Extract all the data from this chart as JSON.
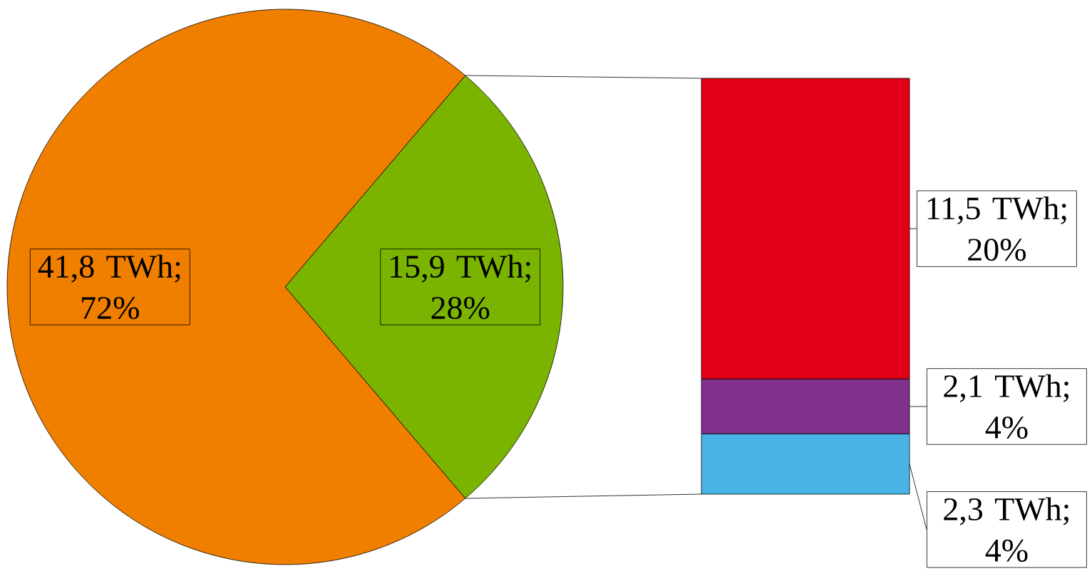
{
  "chart_data": [
    {
      "type": "pie",
      "categories": [
        null,
        null
      ],
      "values": [
        41.8,
        15.9
      ],
      "colors": [
        "#f07f00",
        "#7ab400"
      ],
      "value_labels": [
        "41,8 TWh; 72%",
        "15,9 TWh; 28%"
      ]
    },
    {
      "type": "bar",
      "stacked": true,
      "categories": [
        null
      ],
      "series": [
        {
          "color": "#4ab3e6",
          "values": [
            2.3
          ],
          "value_labels": [
            "2,3 TWh; 4%"
          ]
        },
        {
          "color": "#80308a",
          "values": [
            2.1
          ],
          "value_labels": [
            "2,1 TWh; 4%"
          ]
        },
        {
          "color": "#e10016",
          "values": [
            11.5
          ],
          "value_labels": [
            "11,5 TWh; 20%"
          ]
        }
      ]
    }
  ]
}
